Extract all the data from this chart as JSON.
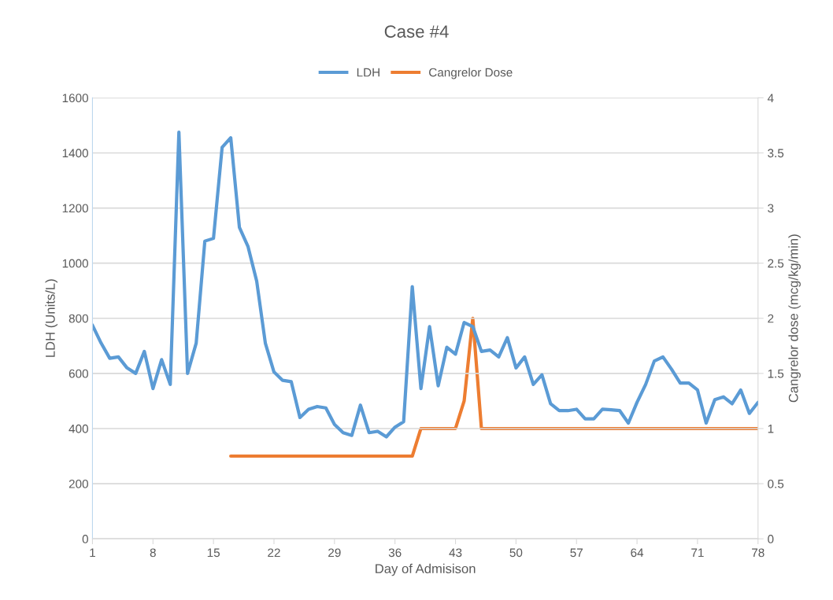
{
  "chart_data": {
    "type": "line",
    "title": "Case #4",
    "xlabel": "Day of Admisison",
    "ylabel": "LDH (Units/L)",
    "y2label": "Cangrelor dose (mcg/kg/min)",
    "x": [
      1,
      2,
      3,
      4,
      5,
      6,
      7,
      8,
      9,
      10,
      11,
      12,
      13,
      14,
      15,
      16,
      17,
      18,
      19,
      20,
      21,
      22,
      23,
      24,
      25,
      26,
      27,
      28,
      29,
      30,
      31,
      32,
      33,
      34,
      35,
      36,
      37,
      38,
      39,
      40,
      41,
      42,
      43,
      44,
      45,
      46,
      47,
      48,
      49,
      50,
      51,
      52,
      53,
      54,
      55,
      56,
      57,
      58,
      59,
      60,
      61,
      62,
      63,
      64,
      65,
      66,
      67,
      68,
      69,
      70,
      71,
      72,
      73,
      74,
      75,
      76,
      77,
      78
    ],
    "series": [
      {
        "name": "LDH",
        "color": "#5b9bd5",
        "values": [
          775,
          710,
          655,
          660,
          620,
          600,
          680,
          545,
          650,
          560,
          1475,
          600,
          710,
          1080,
          1090,
          1420,
          1455,
          1130,
          1060,
          935,
          710,
          605,
          575,
          570,
          440,
          470,
          480,
          475,
          415,
          385,
          375,
          485,
          385,
          390,
          370,
          405,
          425,
          915,
          545,
          770,
          555,
          695,
          670,
          785,
          770,
          680,
          685,
          660,
          730,
          620,
          660,
          560,
          595,
          490,
          465,
          465,
          470,
          435,
          435,
          470,
          468,
          465,
          420,
          495,
          560,
          645,
          660,
          615,
          565,
          565,
          540,
          420,
          505,
          515,
          490,
          540,
          455,
          495
        ]
      },
      {
        "name": "Cangrelor Dose",
        "color": "#ed7d31",
        "axis": "y2",
        "values": [
          null,
          null,
          null,
          null,
          null,
          null,
          null,
          null,
          null,
          null,
          null,
          null,
          null,
          null,
          null,
          null,
          0.75,
          0.75,
          0.75,
          0.75,
          0.75,
          0.75,
          0.75,
          0.75,
          0.75,
          0.75,
          0.75,
          0.75,
          0.75,
          0.75,
          0.75,
          0.75,
          0.75,
          0.75,
          0.75,
          0.75,
          0.75,
          0.75,
          1,
          1,
          1,
          1,
          1,
          1.25,
          2,
          1,
          1,
          1,
          1,
          1,
          1,
          1,
          1,
          1,
          1,
          1,
          1,
          1,
          1,
          1,
          1,
          1,
          1,
          1,
          1,
          1,
          1,
          1,
          1,
          1,
          1,
          1,
          1,
          1,
          1,
          1,
          1,
          1
        ]
      }
    ],
    "xlim": [
      1,
      78
    ],
    "xticks": [
      1,
      8,
      15,
      22,
      29,
      36,
      43,
      50,
      57,
      64,
      71,
      78
    ],
    "ylim": [
      0,
      1600
    ],
    "yticks": [
      0,
      200,
      400,
      600,
      800,
      1000,
      1200,
      1400,
      1600
    ],
    "y2lim": [
      0,
      4
    ],
    "y2ticks": [
      0,
      0.5,
      1,
      1.5,
      2,
      2.5,
      3,
      3.5,
      4
    ],
    "grid": "y",
    "legend": "top",
    "marker": "none",
    "line_style": "solid"
  }
}
